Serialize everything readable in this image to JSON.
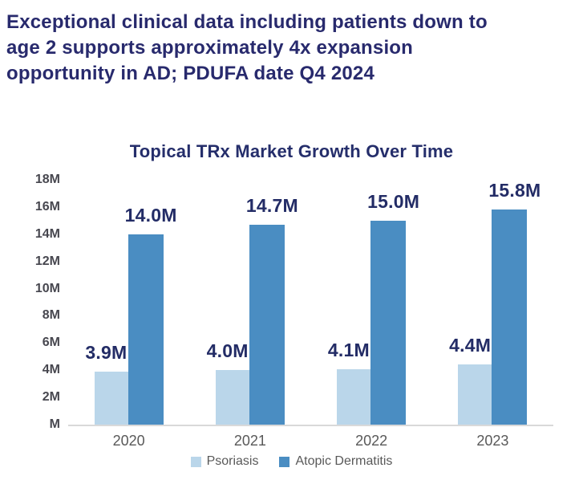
{
  "page": {
    "background": "#FFFFFF"
  },
  "headline": {
    "color": "#282A6D",
    "lines": [
      "Exceptional clinical data including patients down to",
      "age 2 supports approximately 4x expansion",
      "opportunity in AD; PDUFA date Q4 2024"
    ]
  },
  "chart_data": {
    "type": "bar",
    "title": "Topical TRx Market Growth Over Time",
    "categories": [
      "2020",
      "2021",
      "2022",
      "2023"
    ],
    "series": [
      {
        "name": "Psoriasis",
        "color": "#BAD6EA",
        "values": [
          3.9,
          4.0,
          4.1,
          4.4
        ],
        "value_labels": [
          "3.9M",
          "4.0M",
          "4.1M",
          "4.4M"
        ]
      },
      {
        "name": "Atopic Dermatitis",
        "color": "#4A8DC2",
        "values": [
          14.0,
          14.7,
          15.0,
          15.8
        ],
        "value_labels": [
          "14.0M",
          "14.7M",
          "15.0M",
          "15.8M"
        ]
      }
    ],
    "y_ticks": [
      "18M",
      "16M",
      "14M",
      "12M",
      "10M",
      "8M",
      "6M",
      "4M",
      "2M",
      "M"
    ],
    "ylim": [
      0,
      18
    ],
    "xlabel": "",
    "ylabel": "",
    "grid": false,
    "legend_position": "bottom",
    "title_color": "#252E6B",
    "value_label_color": "#232C66",
    "axis_tick_color": "#47474F",
    "category_label_color": "#595959",
    "legend_text_color": "#595959",
    "baseline_color": "#D9D9D9"
  }
}
